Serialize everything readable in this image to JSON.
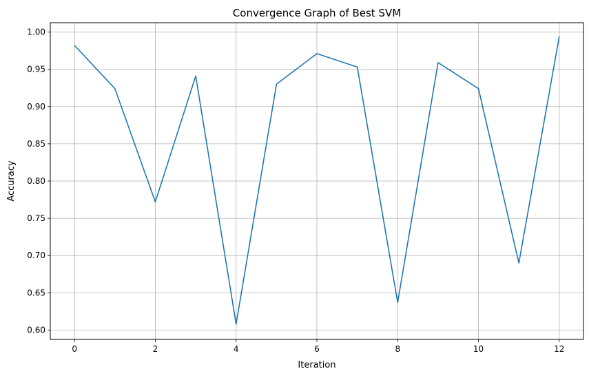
{
  "chart_data": {
    "type": "line",
    "title": "Convergence Graph of Best SVM",
    "xlabel": "Iteration",
    "ylabel": "Accuracy",
    "xlim": [
      -0.6,
      12.6
    ],
    "ylim": [
      0.5875,
      1.0125
    ],
    "xticks": [
      0,
      2,
      4,
      6,
      8,
      10,
      12
    ],
    "yticks": [
      0.6,
      0.65,
      0.7,
      0.75,
      0.8,
      0.85,
      0.9,
      0.95,
      1.0
    ],
    "ytick_labels": [
      "0.60",
      "0.65",
      "0.70",
      "0.75",
      "0.80",
      "0.85",
      "0.90",
      "0.95",
      "1.00"
    ],
    "grid": true,
    "series": [
      {
        "color": "#1f77b4",
        "x": [
          0,
          1,
          2,
          3,
          4,
          5,
          6,
          7,
          8,
          9,
          10,
          11,
          12
        ],
        "y": [
          0.982,
          0.924,
          0.772,
          0.941,
          0.608,
          0.93,
          0.971,
          0.953,
          0.637,
          0.959,
          0.924,
          0.69,
          0.994
        ]
      }
    ]
  }
}
